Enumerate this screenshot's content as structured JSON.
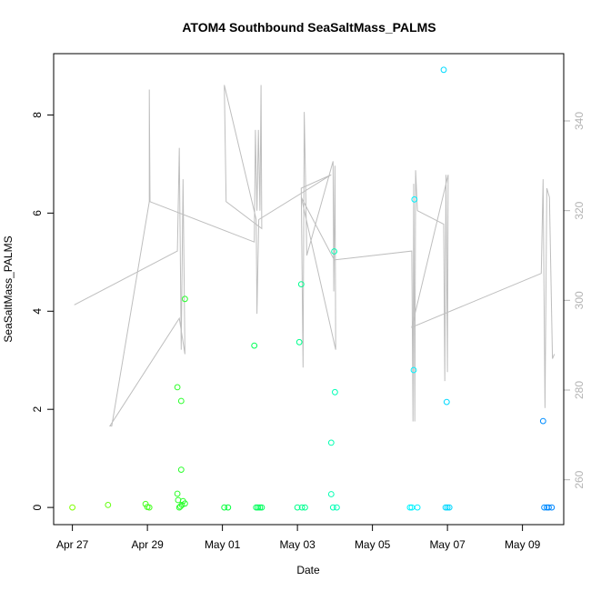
{
  "chart_data": {
    "type": "scatter",
    "title": "ATOM4 Southbound SeaSaltMass_PALMS",
    "xlabel": "Date",
    "ylabel": "SeaSaltMass_PALMS",
    "x_ticks": [
      "Apr 27",
      "Apr 29",
      "May 01",
      "May 03",
      "May 05",
      "May 07",
      "May 09"
    ],
    "x_tick_days": [
      0,
      2,
      4,
      6,
      8,
      10,
      12
    ],
    "xlim_days": [
      -0.5,
      13.1
    ],
    "ylim": [
      -0.35,
      9.25
    ],
    "y_ticks": [
      0,
      2,
      4,
      6,
      8
    ],
    "y2lim": [
      250,
      355
    ],
    "y2_ticks": [
      260,
      280,
      300,
      320,
      340
    ],
    "grid": false,
    "legend": "none",
    "colors": {
      "line": "#bebebe",
      "right_axis": "#b3b3b3",
      "gradient": [
        "#7fff00",
        "#00ff40",
        "#00ffff",
        "#0080ff"
      ]
    },
    "points": [
      {
        "x": 0.0,
        "y": 0.0
      },
      {
        "x": 0.95,
        "y": 0.05
      },
      {
        "x": 1.95,
        "y": 0.07
      },
      {
        "x": 2.0,
        "y": 0.01
      },
      {
        "x": 2.05,
        "y": 0.0
      },
      {
        "x": 2.8,
        "y": 2.45
      },
      {
        "x": 2.8,
        "y": 0.28
      },
      {
        "x": 2.82,
        "y": 0.15
      },
      {
        "x": 2.85,
        "y": 0.0
      },
      {
        "x": 2.88,
        "y": 0.02
      },
      {
        "x": 2.9,
        "y": 0.77
      },
      {
        "x": 2.9,
        "y": 2.17
      },
      {
        "x": 2.92,
        "y": 0.05
      },
      {
        "x": 2.95,
        "y": 0.13
      },
      {
        "x": 3.0,
        "y": 0.08
      },
      {
        "x": 3.0,
        "y": 4.25
      },
      {
        "x": 4.05,
        "y": 0.0
      },
      {
        "x": 4.15,
        "y": 0.0
      },
      {
        "x": 4.85,
        "y": 3.3
      },
      {
        "x": 4.9,
        "y": 0.0
      },
      {
        "x": 4.95,
        "y": 0.0
      },
      {
        "x": 5.0,
        "y": 0.0
      },
      {
        "x": 5.05,
        "y": 0.0
      },
      {
        "x": 6.0,
        "y": 0.0
      },
      {
        "x": 6.05,
        "y": 3.37
      },
      {
        "x": 6.1,
        "y": 4.55
      },
      {
        "x": 6.12,
        "y": 0.0
      },
      {
        "x": 6.2,
        "y": 0.0
      },
      {
        "x": 6.9,
        "y": 0.27
      },
      {
        "x": 6.9,
        "y": 1.32
      },
      {
        "x": 6.95,
        "y": 0.0
      },
      {
        "x": 6.98,
        "y": 5.22
      },
      {
        "x": 7.0,
        "y": 2.35
      },
      {
        "x": 7.05,
        "y": 0.0
      },
      {
        "x": 9.0,
        "y": 0.0
      },
      {
        "x": 9.05,
        "y": 0.0
      },
      {
        "x": 9.1,
        "y": 2.8
      },
      {
        "x": 9.12,
        "y": 6.28
      },
      {
        "x": 9.2,
        "y": 0.0
      },
      {
        "x": 9.9,
        "y": 8.92
      },
      {
        "x": 9.95,
        "y": 0.0
      },
      {
        "x": 9.98,
        "y": 2.15
      },
      {
        "x": 10.0,
        "y": 0.0
      },
      {
        "x": 10.05,
        "y": 0.0
      },
      {
        "x": 12.55,
        "y": 1.76
      },
      {
        "x": 12.58,
        "y": 0.0
      },
      {
        "x": 12.65,
        "y": 0.0
      },
      {
        "x": 12.7,
        "y": 0.0
      },
      {
        "x": 12.78,
        "y": 0.0
      }
    ],
    "secondary_line": [
      {
        "x": 0.05,
        "y2": 299
      },
      {
        "x": 2.8,
        "y2": 311
      },
      {
        "x": 2.85,
        "y2": 334
      },
      {
        "x": 2.9,
        "y2": 289
      },
      {
        "x": 2.95,
        "y2": 327
      },
      {
        "x": 3.0,
        "y2": 288
      },
      {
        "x": 2.85,
        "y2": 296
      },
      {
        "x": 1.0,
        "y2": 272
      },
      {
        "x": 1.05,
        "y2": 272
      },
      {
        "x": 2.05,
        "y2": 322
      },
      {
        "x": 2.05,
        "y2": 347
      },
      {
        "x": 2.07,
        "y2": 322
      },
      {
        "x": 4.85,
        "y2": 313
      },
      {
        "x": 4.88,
        "y2": 338
      },
      {
        "x": 4.92,
        "y2": 320
      },
      {
        "x": 4.96,
        "y2": 338
      },
      {
        "x": 5.0,
        "y2": 320
      },
      {
        "x": 5.03,
        "y2": 348
      },
      {
        "x": 5.05,
        "y2": 316
      },
      {
        "x": 4.1,
        "y2": 322
      },
      {
        "x": 4.05,
        "y2": 348
      },
      {
        "x": 4.9,
        "y2": 318
      },
      {
        "x": 4.92,
        "y2": 297
      },
      {
        "x": 4.97,
        "y2": 318
      },
      {
        "x": 6.9,
        "y2": 328
      },
      {
        "x": 6.1,
        "y2": 325
      },
      {
        "x": 6.15,
        "y2": 285
      },
      {
        "x": 6.18,
        "y2": 342
      },
      {
        "x": 6.22,
        "y2": 325
      },
      {
        "x": 6.25,
        "y2": 310
      },
      {
        "x": 6.95,
        "y2": 331
      },
      {
        "x": 6.97,
        "y2": 302
      },
      {
        "x": 7.0,
        "y2": 330
      },
      {
        "x": 7.02,
        "y2": 289
      },
      {
        "x": 6.1,
        "y2": 323
      },
      {
        "x": 6.98,
        "y2": 309
      },
      {
        "x": 9.05,
        "y2": 311
      },
      {
        "x": 9.08,
        "y2": 273
      },
      {
        "x": 9.1,
        "y2": 326
      },
      {
        "x": 9.13,
        "y2": 273
      },
      {
        "x": 9.15,
        "y2": 329
      },
      {
        "x": 9.2,
        "y2": 320
      },
      {
        "x": 9.9,
        "y2": 317
      },
      {
        "x": 9.93,
        "y2": 282
      },
      {
        "x": 9.96,
        "y2": 328
      },
      {
        "x": 10.0,
        "y2": 284
      },
      {
        "x": 10.02,
        "y2": 328
      },
      {
        "x": 9.05,
        "y2": 294
      },
      {
        "x": 12.5,
        "y2": 306
      },
      {
        "x": 12.55,
        "y2": 327
      },
      {
        "x": 12.6,
        "y2": 276
      },
      {
        "x": 12.65,
        "y2": 325
      },
      {
        "x": 12.72,
        "y2": 323
      },
      {
        "x": 12.8,
        "y2": 287
      },
      {
        "x": 12.85,
        "y2": 288
      }
    ]
  }
}
